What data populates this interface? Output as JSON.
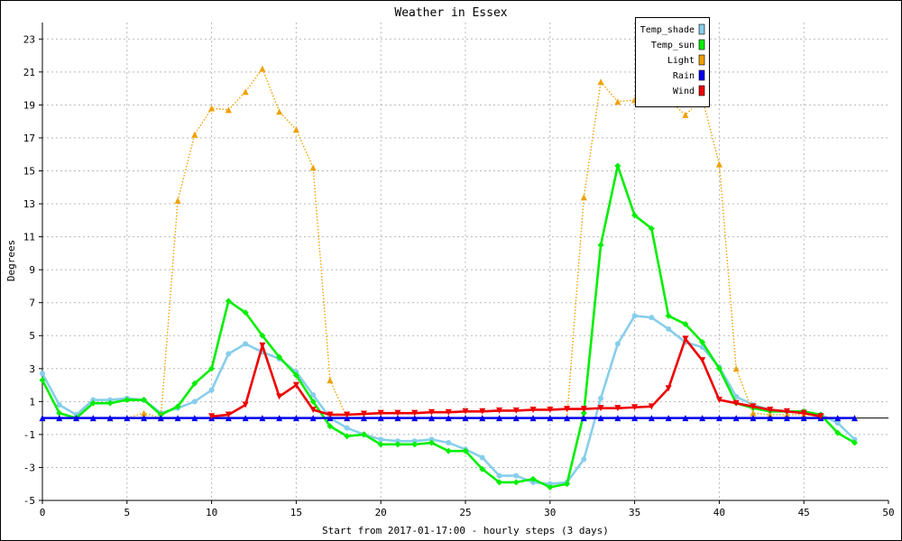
{
  "colors": {
    "temp_shade": "#87ceeb",
    "temp_sun": "#00ee00",
    "light": "#f0a000",
    "rain": "#0000ee",
    "wind": "#ee0000",
    "grid": "#b8b8b8"
  },
  "chart_data": {
    "type": "line",
    "title": "Weather in Essex",
    "xlabel": "Start from 2017-01-17:00 - hourly steps (3 days)",
    "ylabel": "Degrees",
    "xlim": [
      0,
      50
    ],
    "ylim": [
      -5,
      24
    ],
    "x_ticks": [
      0,
      5,
      10,
      15,
      20,
      25,
      30,
      35,
      40,
      45,
      50
    ],
    "y_ticks": [
      -5,
      -3,
      -1,
      1,
      3,
      5,
      7,
      9,
      11,
      13,
      15,
      17,
      19,
      21,
      23
    ],
    "grid": true,
    "legend_position": "top-right",
    "series": [
      {
        "name": "Temp_shade",
        "color_key": "temp_shade",
        "style": "solid",
        "marker": "circle",
        "x": [
          0,
          1,
          2,
          3,
          4,
          5,
          6,
          7,
          8,
          9,
          10,
          11,
          12,
          13,
          14,
          15,
          16,
          17,
          18,
          19,
          20,
          21,
          22,
          23,
          24,
          25,
          26,
          27,
          28,
          29,
          30,
          31,
          32,
          33,
          34,
          35,
          36,
          37,
          38,
          39,
          40,
          41,
          42,
          43,
          44,
          45,
          46,
          47,
          48
        ],
        "y": [
          2.7,
          0.8,
          0.2,
          1.1,
          1.1,
          1.2,
          1.1,
          0.3,
          0.6,
          1.0,
          1.7,
          3.9,
          4.5,
          4.0,
          3.6,
          2.8,
          1.4,
          0.0,
          -0.6,
          -1.0,
          -1.3,
          -1.4,
          -1.4,
          -1.3,
          -1.5,
          -1.9,
          -2.4,
          -3.5,
          -3.5,
          -3.9,
          -4.0,
          -3.9,
          -2.5,
          1.2,
          4.5,
          6.2,
          6.1,
          5.4,
          4.6,
          4.3,
          3.1,
          1.3,
          0.8,
          0.5,
          0.4,
          0.4,
          0.2,
          -0.3,
          -1.3
        ]
      },
      {
        "name": "Temp_sun",
        "color_key": "temp_sun",
        "style": "solid",
        "marker": "diamond",
        "x": [
          0,
          1,
          2,
          3,
          4,
          5,
          6,
          7,
          8,
          9,
          10,
          11,
          12,
          13,
          14,
          15,
          16,
          17,
          18,
          19,
          20,
          21,
          22,
          23,
          24,
          25,
          26,
          27,
          28,
          29,
          30,
          31,
          32,
          33,
          34,
          35,
          36,
          37,
          38,
          39,
          40,
          41,
          42,
          43,
          44,
          45,
          46,
          47,
          48
        ],
        "y": [
          2.3,
          0.3,
          0.0,
          0.9,
          0.9,
          1.1,
          1.1,
          0.2,
          0.7,
          2.1,
          3.0,
          7.1,
          6.4,
          5.0,
          3.7,
          2.6,
          1.0,
          -0.5,
          -1.1,
          -1.0,
          -1.6,
          -1.6,
          -1.6,
          -1.5,
          -2.0,
          -2.0,
          -3.1,
          -3.9,
          -3.9,
          -3.7,
          -4.2,
          -4.0,
          0.3,
          10.5,
          15.3,
          12.3,
          11.5,
          6.2,
          5.7,
          4.6,
          3.0,
          0.9,
          0.6,
          0.4,
          0.4,
          0.4,
          0.2,
          -0.9,
          -1.5
        ]
      },
      {
        "name": "Light",
        "color_key": "light",
        "style": "dotted",
        "marker": "triangle-up",
        "x": [
          0,
          1,
          2,
          3,
          4,
          5,
          6,
          7,
          8,
          9,
          10,
          11,
          12,
          13,
          14,
          15,
          16,
          17,
          18,
          19,
          20,
          21,
          22,
          23,
          24,
          25,
          26,
          27,
          28,
          29,
          30,
          31,
          32,
          33,
          34,
          35,
          36,
          37,
          38,
          39,
          40,
          41,
          42,
          43,
          44,
          45,
          46,
          47,
          48
        ],
        "y": [
          0,
          0,
          0,
          0,
          0,
          0,
          0.3,
          0,
          13.2,
          17.2,
          18.8,
          18.7,
          19.8,
          21.2,
          18.6,
          17.5,
          15.2,
          2.3,
          0,
          0,
          0,
          0,
          0,
          0,
          0,
          0,
          0,
          0,
          0,
          0,
          0,
          0,
          13.4,
          20.4,
          19.2,
          19.3,
          19.4,
          19.3,
          18.4,
          19.4,
          15.4,
          3.0,
          0.3,
          0.2,
          0.2,
          0.2,
          0.1,
          0,
          0
        ]
      },
      {
        "name": "Rain",
        "color_key": "rain",
        "style": "solid",
        "marker": "triangle-up",
        "x": [
          0,
          1,
          2,
          3,
          4,
          5,
          6,
          7,
          8,
          9,
          10,
          11,
          12,
          13,
          14,
          15,
          16,
          17,
          18,
          19,
          20,
          21,
          22,
          23,
          24,
          25,
          26,
          27,
          28,
          29,
          30,
          31,
          32,
          33,
          34,
          35,
          36,
          37,
          38,
          39,
          40,
          41,
          42,
          43,
          44,
          45,
          46,
          47,
          48
        ],
        "y": [
          0,
          0,
          0,
          0,
          0,
          0,
          0,
          0,
          0,
          0,
          0,
          0,
          0,
          0,
          0,
          0,
          0,
          0,
          0,
          0,
          0,
          0,
          0,
          0,
          0,
          0,
          0,
          0,
          0,
          0,
          0,
          0,
          0,
          0,
          0,
          0,
          0,
          0,
          0,
          0,
          0,
          0,
          0,
          0,
          0,
          0,
          0,
          0,
          0
        ]
      },
      {
        "name": "Wind",
        "color_key": "wind",
        "style": "solid",
        "marker": "triangle-down",
        "x": [
          10,
          11,
          12,
          13,
          14,
          15,
          16,
          17,
          18,
          19,
          20,
          21,
          22,
          23,
          24,
          25,
          26,
          27,
          28,
          29,
          30,
          31,
          32,
          33,
          34,
          35,
          36,
          37,
          38,
          39,
          40,
          41,
          42,
          43,
          44,
          45,
          46
        ],
        "y": [
          0.1,
          0.2,
          0.8,
          4.4,
          1.3,
          2.0,
          0.5,
          0.2,
          0.2,
          0.25,
          0.3,
          0.3,
          0.3,
          0.35,
          0.35,
          0.4,
          0.4,
          0.45,
          0.45,
          0.5,
          0.5,
          0.55,
          0.55,
          0.6,
          0.6,
          0.65,
          0.7,
          1.8,
          4.8,
          3.5,
          1.1,
          0.9,
          0.7,
          0.5,
          0.4,
          0.3,
          0.1
        ]
      }
    ]
  }
}
